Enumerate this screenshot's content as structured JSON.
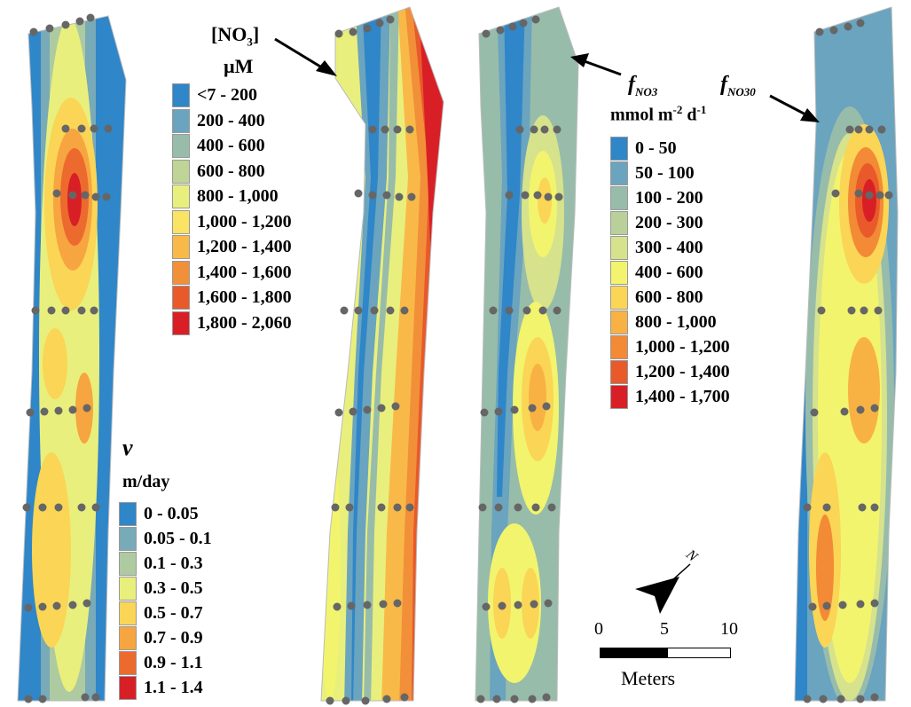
{
  "maps": [
    {
      "name": "velocity-map",
      "field": "v"
    },
    {
      "name": "nitrate-concentration-map",
      "field": "[NO3]"
    },
    {
      "name": "fno3-flux-map",
      "field": "fNO3"
    },
    {
      "name": "fno30-flux-map",
      "field": "fNO30"
    }
  ],
  "no3_legend": {
    "title_text": "[NO",
    "title_sub": "3",
    "title_close": "]",
    "units": "µM",
    "classes": [
      {
        "label": "<7 - 200",
        "color": "#2f86c8"
      },
      {
        "label": "200 - 400",
        "color": "#6aa4bf"
      },
      {
        "label": "400 - 600",
        "color": "#97bcaa"
      },
      {
        "label": "600 - 800",
        "color": "#bfd497"
      },
      {
        "label": "800 - 1,000",
        "color": "#e9ef7c"
      },
      {
        "label": "1,000 - 1,200",
        "color": "#fbe363"
      },
      {
        "label": "1,200 - 1,400",
        "color": "#f9b948"
      },
      {
        "label": "1,400 - 1,600",
        "color": "#f28f39"
      },
      {
        "label": "1,600 - 1,800",
        "color": "#e9592a"
      },
      {
        "label": "1,800 - 2,060",
        "color": "#d91f26"
      }
    ]
  },
  "v_legend": {
    "symbol": "v",
    "units": "m/day",
    "classes": [
      {
        "label": "0 - 0.05",
        "color": "#2f86c8"
      },
      {
        "label": "0.05 - 0.1",
        "color": "#79aab8"
      },
      {
        "label": "0.1 - 0.3",
        "color": "#aecaa0"
      },
      {
        "label": "0.3 - 0.5",
        "color": "#e9ef7c"
      },
      {
        "label": "0.5 - 0.7",
        "color": "#fbd555"
      },
      {
        "label": "0.7 - 0.9",
        "color": "#f6a540"
      },
      {
        "label": "0.9 - 1.1",
        "color": "#ec6a2e"
      },
      {
        "label": "1.1 - 1.4",
        "color": "#d91f26"
      }
    ]
  },
  "flux_legend": {
    "label_fno3_main": "f",
    "label_fno3_sub": "NO3",
    "label_fno30_main": "f",
    "label_fno30_sub": "NO30",
    "units_main": "mmol m",
    "units_exp1": "-2",
    "units_mid": " d",
    "units_exp2": "-1",
    "classes": [
      {
        "label": "0 - 50",
        "color": "#2f86c8"
      },
      {
        "label": "50 - 100",
        "color": "#6aa4bf"
      },
      {
        "label": "100 - 200",
        "color": "#97bcaa"
      },
      {
        "label": "200 - 300",
        "color": "#b9d09a"
      },
      {
        "label": "300 - 400",
        "color": "#d6e28c"
      },
      {
        "label": "400 - 600",
        "color": "#f2f46e"
      },
      {
        "label": "600 - 800",
        "color": "#fbd555"
      },
      {
        "label": "800 - 1,000",
        "color": "#f8b244"
      },
      {
        "label": "1,000 - 1,200",
        "color": "#f28a36"
      },
      {
        "label": "1,200 - 1,400",
        "color": "#e9592a"
      },
      {
        "label": "1,400 - 1,700",
        "color": "#d91f26"
      }
    ]
  },
  "scale": {
    "tick_0": "0",
    "tick_5": "5",
    "tick_10": "10",
    "units": "Meters"
  },
  "north": {
    "label": "N"
  }
}
